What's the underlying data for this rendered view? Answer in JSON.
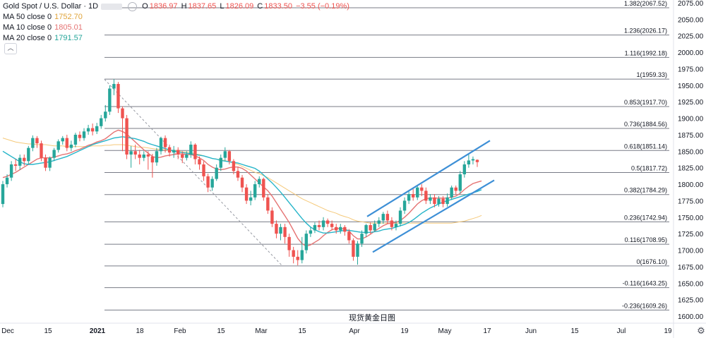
{
  "legend": {
    "symbol": "Gold Spot / U.S. Dollar · 1D",
    "open_label": "O",
    "open": "1836.97",
    "high_label": "H",
    "high": "1837.65",
    "low_label": "L",
    "low": "1826.09",
    "close_label": "C",
    "close": "1833.50",
    "change": "−3.55 (−0.19%)",
    "ma50_label": "MA 50 close 0",
    "ma50_value": "1752.70",
    "ma10_label": "MA 10 close 0",
    "ma10_value": "1805.01",
    "ma20_label": "MA 20 close 0",
    "ma20_value": "1791.57"
  },
  "watermark": "现货黄金日图",
  "colors": {
    "up": "#26a69a",
    "down": "#ef5350",
    "ma50": "#f5c97a",
    "ma10": "#e57373",
    "ma20": "#26b5c9",
    "channel": "#3d8fd6",
    "fib": "#787b86",
    "axis_text": "#131722",
    "price_down": "#ef5350",
    "ma50_text": "#e0a43a",
    "ma10_text": "#e57373",
    "ma20_text": "#26a69a"
  },
  "chart_data": {
    "type": "candlestick",
    "y_range": [
      1585,
      2080
    ],
    "y_ticks": [
      "2075.00",
      "2050.00",
      "2025.00",
      "2000.00",
      "1975.00",
      "1950.00",
      "1925.00",
      "1900.00",
      "1875.00",
      "1850.00",
      "1825.00",
      "1800.00",
      "1775.00",
      "1750.00",
      "1725.00",
      "1700.00",
      "1675.00",
      "1650.00",
      "1625.00",
      "1600.00"
    ],
    "x_ticks": [
      "Dec",
      "15",
      "2021",
      "18",
      "Feb",
      "15",
      "Mar",
      "15",
      "Apr",
      "19",
      "May",
      "17",
      "Jun",
      "15",
      "Jul",
      "19"
    ],
    "fib_levels": [
      {
        "label": "1.382(2067.52)",
        "value": 2067.52
      },
      {
        "label": "1.236(2026.17)",
        "value": 2026.17
      },
      {
        "label": "1.116(1992.18)",
        "value": 1992.18
      },
      {
        "label": "1(1959.33)",
        "value": 1959.33
      },
      {
        "label": "0.853(1917.70)",
        "value": 1917.7
      },
      {
        "label": "0.736(1884.56)",
        "value": 1884.56
      },
      {
        "label": "0.618(1851.14)",
        "value": 1851.14
      },
      {
        "label": "0.5(1817.72)",
        "value": 1817.72
      },
      {
        "label": "0.382(1784.29)",
        "value": 1784.29
      },
      {
        "label": "0.236(1742.94)",
        "value": 1742.94
      },
      {
        "label": "0.116(1708.95)",
        "value": 1708.95
      },
      {
        "label": "0(1676.10)",
        "value": 1676.1
      },
      {
        "label": "-0.116(1643.25)",
        "value": 1643.25
      },
      {
        "label": "-0.236(1609.26)",
        "value": 1609.26
      }
    ],
    "candles": [
      [
        1770,
        1800,
        1765,
        1805
      ],
      [
        1800,
        1810,
        1795,
        1815
      ],
      [
        1810,
        1830,
        1805,
        1835
      ],
      [
        1830,
        1828,
        1820,
        1838
      ],
      [
        1828,
        1840,
        1822,
        1845
      ],
      [
        1840,
        1835,
        1828,
        1845
      ],
      [
        1835,
        1855,
        1830,
        1858
      ],
      [
        1855,
        1870,
        1850,
        1874
      ],
      [
        1870,
        1862,
        1855,
        1873
      ],
      [
        1862,
        1840,
        1835,
        1866
      ],
      [
        1840,
        1825,
        1820,
        1845
      ],
      [
        1825,
        1840,
        1820,
        1842
      ],
      [
        1840,
        1852,
        1835,
        1855
      ],
      [
        1852,
        1865,
        1848,
        1868
      ],
      [
        1865,
        1870,
        1860,
        1873
      ],
      [
        1870,
        1855,
        1850,
        1875
      ],
      [
        1855,
        1860,
        1850,
        1866
      ],
      [
        1860,
        1875,
        1856,
        1878
      ],
      [
        1875,
        1870,
        1865,
        1880
      ],
      [
        1870,
        1880,
        1866,
        1885
      ],
      [
        1880,
        1885,
        1875,
        1890
      ],
      [
        1885,
        1880,
        1874,
        1892
      ],
      [
        1880,
        1888,
        1876,
        1893
      ],
      [
        1888,
        1900,
        1884,
        1905
      ],
      [
        1900,
        1910,
        1895,
        1920
      ],
      [
        1910,
        1945,
        1905,
        1950
      ],
      [
        1945,
        1952,
        1935,
        1959
      ],
      [
        1952,
        1915,
        1908,
        1955
      ],
      [
        1915,
        1900,
        1850,
        1918
      ],
      [
        1900,
        1845,
        1838,
        1905
      ],
      [
        1845,
        1850,
        1825,
        1858
      ],
      [
        1850,
        1845,
        1838,
        1860
      ],
      [
        1845,
        1840,
        1830,
        1852
      ],
      [
        1840,
        1845,
        1835,
        1850
      ],
      [
        1845,
        1842,
        1822,
        1850
      ],
      [
        1842,
        1833,
        1810,
        1846
      ],
      [
        1833,
        1850,
        1828,
        1855
      ],
      [
        1850,
        1870,
        1845,
        1872
      ],
      [
        1870,
        1856,
        1848,
        1874
      ],
      [
        1856,
        1848,
        1842,
        1860
      ],
      [
        1848,
        1852,
        1840,
        1858
      ],
      [
        1852,
        1845,
        1838,
        1856
      ],
      [
        1845,
        1840,
        1832,
        1850
      ],
      [
        1840,
        1845,
        1836,
        1850
      ],
      [
        1845,
        1860,
        1840,
        1865
      ],
      [
        1860,
        1838,
        1830,
        1862
      ],
      [
        1838,
        1830,
        1822,
        1842
      ],
      [
        1830,
        1812,
        1805,
        1835
      ],
      [
        1812,
        1795,
        1788,
        1816
      ],
      [
        1795,
        1808,
        1790,
        1812
      ],
      [
        1808,
        1825,
        1805,
        1830
      ],
      [
        1825,
        1840,
        1820,
        1845
      ],
      [
        1840,
        1850,
        1836,
        1856
      ],
      [
        1850,
        1835,
        1830,
        1852
      ],
      [
        1835,
        1820,
        1815,
        1838
      ],
      [
        1820,
        1810,
        1805,
        1826
      ],
      [
        1810,
        1795,
        1788,
        1814
      ],
      [
        1795,
        1775,
        1770,
        1800
      ],
      [
        1775,
        1780,
        1768,
        1790
      ],
      [
        1780,
        1800,
        1776,
        1805
      ],
      [
        1800,
        1808,
        1795,
        1812
      ],
      [
        1808,
        1780,
        1775,
        1810
      ],
      [
        1780,
        1760,
        1755,
        1785
      ],
      [
        1760,
        1740,
        1735,
        1765
      ],
      [
        1740,
        1725,
        1718,
        1745
      ],
      [
        1725,
        1735,
        1715,
        1740
      ],
      [
        1735,
        1720,
        1710,
        1740
      ],
      [
        1720,
        1700,
        1690,
        1725
      ],
      [
        1700,
        1690,
        1680,
        1705
      ],
      [
        1690,
        1685,
        1677,
        1700
      ],
      [
        1685,
        1700,
        1680,
        1720
      ],
      [
        1700,
        1725,
        1695,
        1730
      ],
      [
        1725,
        1730,
        1720,
        1735
      ],
      [
        1730,
        1738,
        1726,
        1742
      ],
      [
        1738,
        1735,
        1730,
        1745
      ],
      [
        1735,
        1745,
        1730,
        1750
      ],
      [
        1745,
        1740,
        1735,
        1748
      ],
      [
        1740,
        1735,
        1730,
        1745
      ],
      [
        1735,
        1730,
        1725,
        1740
      ],
      [
        1730,
        1735,
        1725,
        1740
      ],
      [
        1735,
        1728,
        1722,
        1738
      ],
      [
        1728,
        1715,
        1710,
        1732
      ],
      [
        1715,
        1690,
        1684,
        1718
      ],
      [
        1690,
        1710,
        1678,
        1714
      ],
      [
        1710,
        1725,
        1705,
        1730
      ],
      [
        1725,
        1738,
        1720,
        1740
      ],
      [
        1738,
        1730,
        1725,
        1742
      ],
      [
        1730,
        1740,
        1728,
        1745
      ],
      [
        1740,
        1745,
        1735,
        1750
      ],
      [
        1745,
        1755,
        1740,
        1758
      ],
      [
        1755,
        1745,
        1740,
        1760
      ],
      [
        1745,
        1735,
        1730,
        1750
      ],
      [
        1735,
        1740,
        1730,
        1745
      ],
      [
        1740,
        1760,
        1736,
        1765
      ],
      [
        1760,
        1775,
        1755,
        1780
      ],
      [
        1775,
        1785,
        1770,
        1790
      ],
      [
        1785,
        1780,
        1775,
        1795
      ],
      [
        1780,
        1795,
        1776,
        1798
      ],
      [
        1795,
        1790,
        1782,
        1800
      ],
      [
        1790,
        1775,
        1770,
        1795
      ],
      [
        1775,
        1780,
        1770,
        1785
      ],
      [
        1780,
        1770,
        1765,
        1785
      ],
      [
        1770,
        1778,
        1766,
        1782
      ],
      [
        1778,
        1770,
        1765,
        1782
      ],
      [
        1770,
        1780,
        1766,
        1786
      ],
      [
        1780,
        1795,
        1776,
        1798
      ],
      [
        1795,
        1790,
        1784,
        1798
      ],
      [
        1790,
        1815,
        1786,
        1820
      ],
      [
        1815,
        1830,
        1810,
        1835
      ],
      [
        1830,
        1836,
        1825,
        1845
      ],
      [
        1836,
        1838,
        1830,
        1842
      ],
      [
        1836.97,
        1833.5,
        1826.09,
        1837.65
      ]
    ],
    "series": [
      {
        "name": "MA 50 close 0",
        "values": [
          1870,
          1868,
          1866,
          1864,
          1863,
          1862,
          1861,
          1861,
          1860,
          1860,
          1860,
          1859,
          1858,
          1858,
          1858,
          1857,
          1857,
          1857,
          1857,
          1857,
          1857,
          1858,
          1858,
          1858,
          1859,
          1859,
          1860,
          1860,
          1860,
          1859,
          1858,
          1857,
          1856,
          1856,
          1855,
          1854,
          1853,
          1853,
          1852,
          1851,
          1851,
          1850,
          1849,
          1849,
          1848,
          1846,
          1845,
          1843,
          1841,
          1839,
          1838,
          1837,
          1836,
          1834,
          1832,
          1830,
          1827,
          1824,
          1821,
          1818,
          1816,
          1813,
          1810,
          1806,
          1802,
          1798,
          1794,
          1790,
          1786,
          1782,
          1778,
          1775,
          1772,
          1769,
          1766,
          1763,
          1760,
          1758,
          1756,
          1753,
          1751,
          1749,
          1746,
          1744,
          1743,
          1742,
          1741,
          1741,
          1741,
          1741,
          1741,
          1741,
          1741,
          1741,
          1741,
          1741,
          1741,
          1741,
          1741,
          1741,
          1741,
          1741,
          1741,
          1741,
          1741,
          1741,
          1742,
          1743,
          1744,
          1746,
          1748,
          1750,
          1752.7
        ]
      },
      {
        "name": "MA 10 close 0",
        "values": [
          1810,
          1812,
          1815,
          1818,
          1822,
          1826,
          1830,
          1834,
          1838,
          1840,
          1840,
          1840,
          1841,
          1843,
          1845,
          1846,
          1848,
          1851,
          1853,
          1856,
          1859,
          1861,
          1864,
          1866,
          1869,
          1874,
          1879,
          1882,
          1880,
          1876,
          1870,
          1864,
          1858,
          1852,
          1847,
          1842,
          1840,
          1841,
          1843,
          1844,
          1845,
          1846,
          1846,
          1845,
          1845,
          1843,
          1840,
          1836,
          1830,
          1826,
          1823,
          1822,
          1823,
          1825,
          1826,
          1826,
          1824,
          1820,
          1814,
          1808,
          1802,
          1796,
          1790,
          1782,
          1772,
          1762,
          1752,
          1742,
          1730,
          1718,
          1710,
          1706,
          1708,
          1712,
          1716,
          1722,
          1727,
          1731,
          1733,
          1733,
          1732,
          1729,
          1722,
          1717,
          1717,
          1720,
          1724,
          1729,
          1733,
          1737,
          1740,
          1741,
          1742,
          1745,
          1750,
          1756,
          1763,
          1770,
          1775,
          1778,
          1779,
          1779,
          1779,
          1779,
          1779,
          1780,
          1782,
          1786,
          1792,
          1797,
          1801,
          1803,
          1805.01
        ]
      },
      {
        "name": "MA 20 close 0",
        "values": [
          1850,
          1846,
          1842,
          1838,
          1834,
          1831,
          1830,
          1830,
          1831,
          1832,
          1833,
          1834,
          1836,
          1838,
          1840,
          1842,
          1845,
          1848,
          1851,
          1854,
          1857,
          1860,
          1862,
          1864,
          1866,
          1868,
          1870,
          1871,
          1872,
          1871,
          1870,
          1869,
          1867,
          1865,
          1862,
          1860,
          1858,
          1856,
          1854,
          1852,
          1850,
          1849,
          1848,
          1847,
          1846,
          1845,
          1844,
          1843,
          1841,
          1839,
          1838,
          1836,
          1835,
          1834,
          1833,
          1832,
          1830,
          1828,
          1826,
          1824,
          1820,
          1814,
          1808,
          1802,
          1795,
          1788,
          1780,
          1772,
          1764,
          1756,
          1748,
          1741,
          1735,
          1731,
          1728,
          1726,
          1726,
          1727,
          1728,
          1729,
          1730,
          1730,
          1729,
          1728,
          1727,
          1727,
          1727,
          1728,
          1729,
          1731,
          1732,
          1733,
          1735,
          1737,
          1739,
          1742,
          1746,
          1751,
          1756,
          1760,
          1764,
          1767,
          1770,
          1773,
          1775,
          1777,
          1779,
          1781,
          1783,
          1785,
          1787,
          1789,
          1791.57
        ]
      }
    ],
    "channel": [
      {
        "x1": 520,
        "y1": 1751,
        "x2": 694,
        "y2": 1866
      },
      {
        "x1": 528,
        "y1": 1697,
        "x2": 700,
        "y2": 1806
      }
    ],
    "diagonal": {
      "x1": 148,
      "y1": 1959,
      "x2": 400,
      "y2": 1676
    },
    "current_price_marker": 1833.5
  }
}
